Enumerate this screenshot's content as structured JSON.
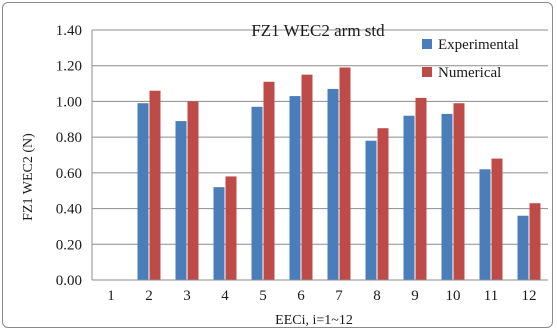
{
  "chart_data": {
    "type": "bar",
    "title": "FZ1 WEC2 arm std",
    "xlabel": "EECi, i=1~12",
    "ylabel": "FZ1 WEC2 (N)",
    "ylim": [
      0,
      1.4
    ],
    "yticks": [
      "0.00",
      "0.20",
      "0.40",
      "0.60",
      "0.80",
      "1.00",
      "1.20",
      "1.40"
    ],
    "grid": true,
    "legend_position": "top-right",
    "categories": [
      "1",
      "2",
      "3",
      "4",
      "5",
      "6",
      "7",
      "8",
      "9",
      "10",
      "11",
      "12"
    ],
    "series": [
      {
        "name": "Experimental",
        "color": "#4a7ebb",
        "values": [
          0,
          0.99,
          0.89,
          0.52,
          0.97,
          1.03,
          1.07,
          0.78,
          0.92,
          0.93,
          0.62,
          0.36
        ]
      },
      {
        "name": "Numerical",
        "color": "#be4b48",
        "values": [
          0,
          1.06,
          1.0,
          0.58,
          1.11,
          1.15,
          1.19,
          0.85,
          1.02,
          0.99,
          0.68,
          0.43
        ]
      }
    ]
  }
}
